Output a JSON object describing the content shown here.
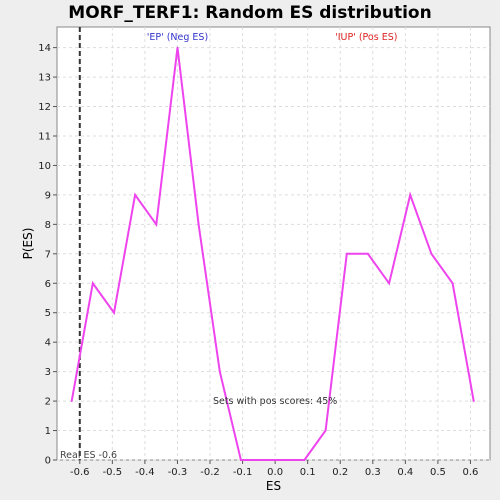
{
  "chart_data": {
    "type": "line",
    "title": "MORF_TERF1: Random ES distribution",
    "xlabel": "ES",
    "ylabel": "P(ES)",
    "xlim": [
      -0.67,
      0.66
    ],
    "ylim": [
      0,
      14.7
    ],
    "x_ticks": [
      -0.6,
      -0.5,
      -0.4,
      -0.3,
      -0.2,
      -0.1,
      0.0,
      0.1,
      0.2,
      0.3,
      0.4,
      0.5,
      0.6
    ],
    "x_tick_labels": [
      "-0.6",
      "-0.5",
      "-0.4",
      "-0.3",
      "-0.2",
      "-0.1",
      "0.0",
      "0.1",
      "0.2",
      "0.3",
      "0.4",
      "0.5",
      "0.6"
    ],
    "y_ticks": [
      0,
      1,
      2,
      3,
      4,
      5,
      6,
      7,
      8,
      9,
      10,
      11,
      12,
      13,
      14
    ],
    "y_tick_labels": [
      "0",
      "1",
      "2",
      "3",
      "4",
      "5",
      "6",
      "7",
      "8",
      "9",
      "10",
      "11",
      "12",
      "13",
      "14"
    ],
    "grid": true,
    "series": [
      {
        "color": "#ee44ee",
        "x": [
          -0.625,
          -0.56,
          -0.495,
          -0.43,
          -0.365,
          -0.3,
          -0.235,
          -0.17,
          -0.105,
          -0.04,
          0.025,
          0.09,
          0.155,
          0.22,
          0.285,
          0.35,
          0.415,
          0.48,
          0.545,
          0.61
        ],
        "y": [
          2,
          6,
          5,
          9,
          8,
          14,
          8,
          3,
          0,
          0,
          0,
          0,
          1,
          7,
          7,
          6,
          9,
          7,
          6,
          2
        ]
      }
    ],
    "real_es": {
      "value": -0.6,
      "label": "Real ES -0.6"
    },
    "annotations": {
      "neg_label": "'EP' (Neg ES)",
      "neg_color": "#3333cc",
      "pos_label": "'IUP' (Pos ES)",
      "pos_color": "#dd2222",
      "pos_scores_text": "Sets with pos scores: 45%"
    }
  }
}
